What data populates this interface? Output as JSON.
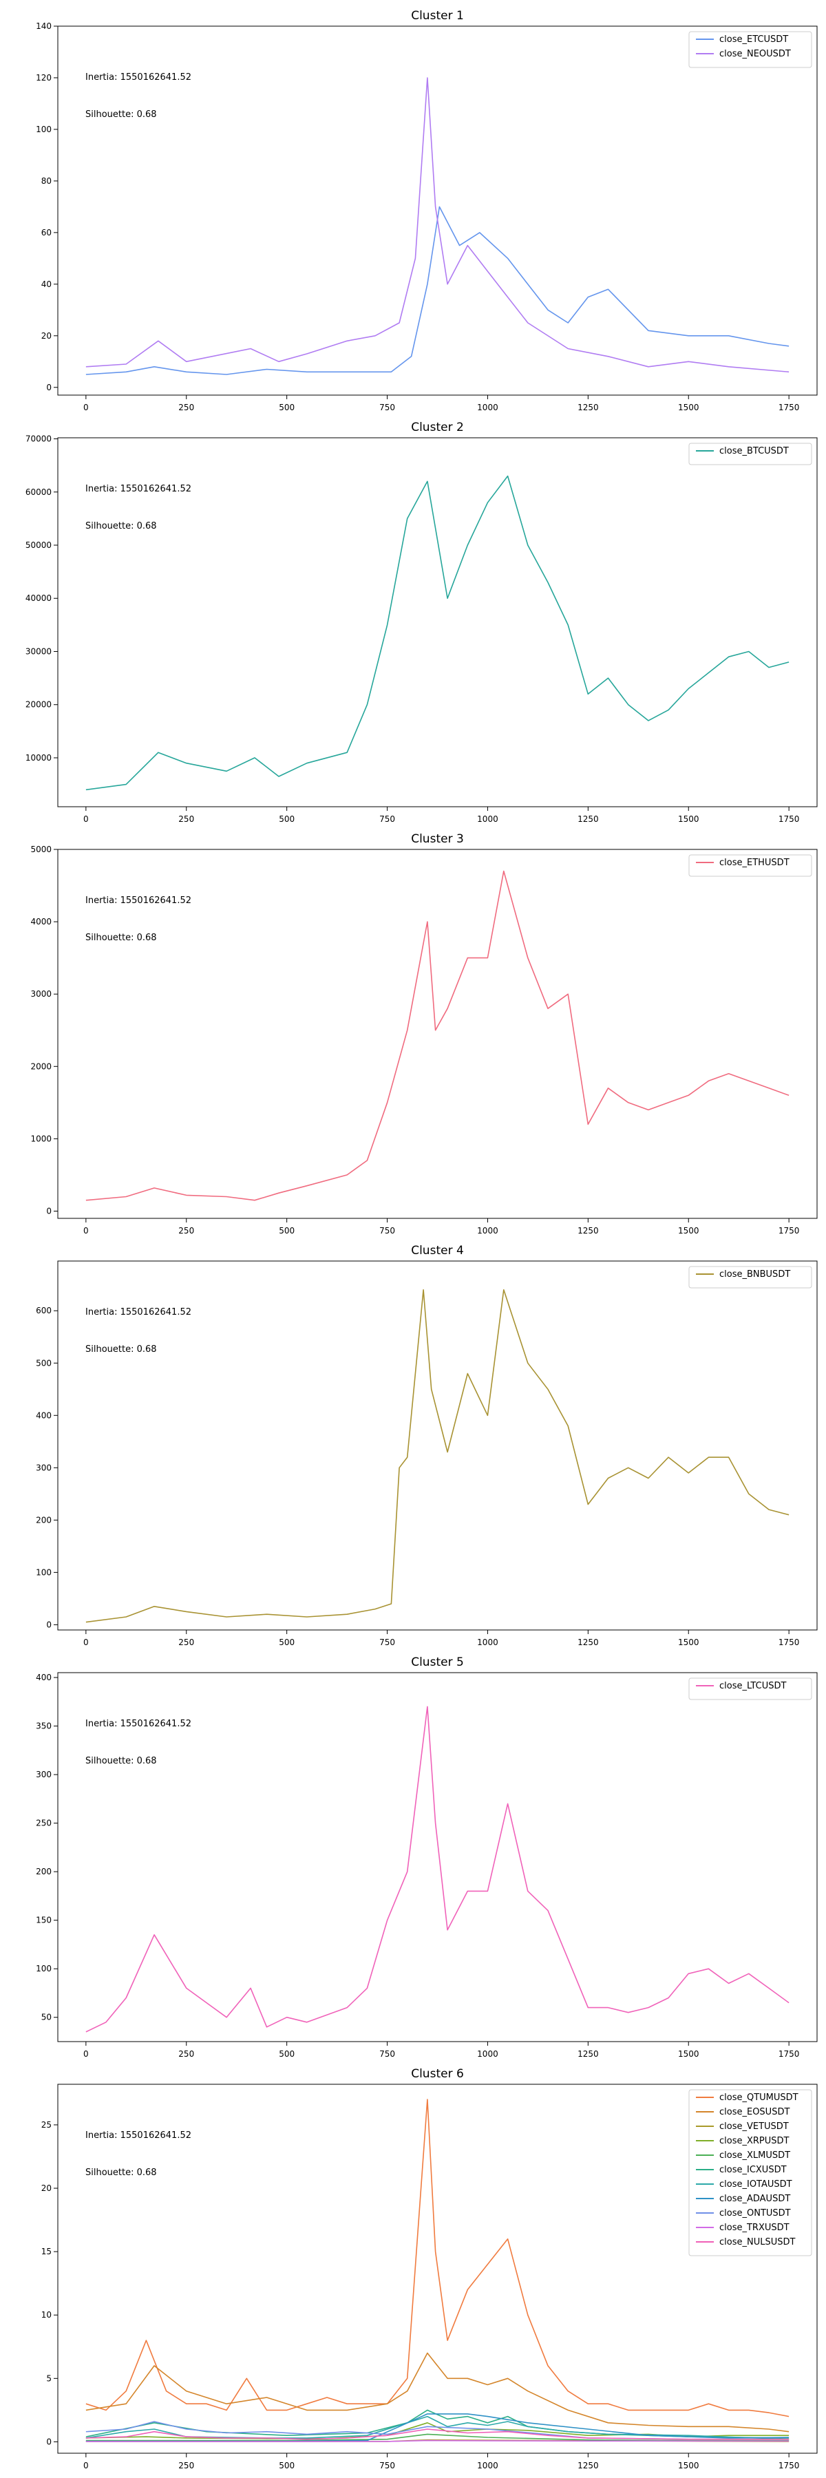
{
  "chart_data": [
    {
      "type": "line",
      "title": "Cluster 1",
      "annotations": [
        "Inertia: 1550162641.52",
        "Silhouette: 0.68"
      ],
      "xlim": [
        -70,
        1820
      ],
      "ylim": [
        -3,
        140
      ],
      "xticks": [
        0,
        250,
        500,
        750,
        1000,
        1250,
        1500,
        1750
      ],
      "yticks": [
        0,
        20,
        40,
        60,
        80,
        100,
        120,
        140
      ],
      "legend_position": "top-right",
      "series": [
        {
          "name": "close_ETCUSDT",
          "color": "#6495ED",
          "x": [
            0,
            100,
            170,
            250,
            350,
            450,
            550,
            650,
            760,
            810,
            850,
            880,
            930,
            980,
            1050,
            1150,
            1200,
            1250,
            1300,
            1400,
            1500,
            1600,
            1700,
            1750
          ],
          "y": [
            5,
            6,
            8,
            6,
            5,
            7,
            6,
            6,
            6,
            12,
            40,
            70,
            55,
            60,
            50,
            30,
            25,
            35,
            38,
            22,
            20,
            20,
            17,
            16
          ]
        },
        {
          "name": "close_NEOUSDT",
          "color": "#B07CF2",
          "x": [
            0,
            100,
            180,
            250,
            410,
            480,
            550,
            650,
            720,
            780,
            820,
            850,
            870,
            900,
            950,
            1000,
            1050,
            1100,
            1200,
            1300,
            1400,
            1500,
            1600,
            1750
          ],
          "y": [
            8,
            9,
            18,
            10,
            15,
            10,
            13,
            18,
            20,
            25,
            50,
            120,
            70,
            40,
            55,
            45,
            35,
            25,
            15,
            12,
            8,
            10,
            8,
            6
          ]
        }
      ]
    },
    {
      "type": "line",
      "title": "Cluster 2",
      "annotations": [
        "Inertia: 1550162641.52",
        "Silhouette: 0.68"
      ],
      "xlim": [
        -70,
        1820
      ],
      "ylim": [
        800,
        70200
      ],
      "xticks": [
        0,
        250,
        500,
        750,
        1000,
        1250,
        1500,
        1750
      ],
      "yticks": [
        10000,
        20000,
        30000,
        40000,
        50000,
        60000,
        70000
      ],
      "legend_position": "top-right",
      "series": [
        {
          "name": "close_BTCUSDT",
          "color": "#26A69A",
          "x": [
            0,
            100,
            180,
            250,
            350,
            420,
            480,
            550,
            650,
            700,
            750,
            800,
            850,
            900,
            950,
            1000,
            1050,
            1100,
            1150,
            1200,
            1250,
            1300,
            1350,
            1400,
            1450,
            1500,
            1550,
            1600,
            1650,
            1700,
            1750
          ],
          "y": [
            4000,
            5000,
            11000,
            9000,
            7500,
            10000,
            6500,
            9000,
            11000,
            20000,
            35000,
            55000,
            62000,
            40000,
            50000,
            58000,
            63000,
            50000,
            43000,
            35000,
            22000,
            25000,
            20000,
            17000,
            19000,
            23000,
            26000,
            29000,
            30000,
            27000,
            28000
          ]
        }
      ]
    },
    {
      "type": "line",
      "title": "Cluster 3",
      "annotations": [
        "Inertia: 1550162641.52",
        "Silhouette: 0.68"
      ],
      "xlim": [
        -70,
        1820
      ],
      "ylim": [
        -100,
        5000
      ],
      "xticks": [
        0,
        250,
        500,
        750,
        1000,
        1250,
        1500,
        1750
      ],
      "yticks": [
        0,
        1000,
        2000,
        3000,
        4000,
        5000
      ],
      "legend_position": "top-right",
      "series": [
        {
          "name": "close_ETHUSDT",
          "color": "#F06B7F",
          "x": [
            0,
            100,
            170,
            250,
            350,
            420,
            480,
            550,
            650,
            700,
            750,
            800,
            850,
            870,
            900,
            950,
            1000,
            1040,
            1100,
            1150,
            1200,
            1250,
            1300,
            1350,
            1400,
            1450,
            1500,
            1550,
            1600,
            1650,
            1700,
            1750
          ],
          "y": [
            150,
            200,
            320,
            220,
            200,
            150,
            250,
            350,
            500,
            700,
            1500,
            2500,
            4000,
            2500,
            2800,
            3500,
            3500,
            4700,
            3500,
            2800,
            3000,
            1200,
            1700,
            1500,
            1400,
            1500,
            1600,
            1800,
            1900,
            1800,
            1700,
            1600
          ]
        }
      ]
    },
    {
      "type": "line",
      "title": "Cluster 4",
      "annotations": [
        "Inertia: 1550162641.52",
        "Silhouette: 0.68"
      ],
      "xlim": [
        -70,
        1820
      ],
      "ylim": [
        -10,
        695
      ],
      "xticks": [
        0,
        250,
        500,
        750,
        1000,
        1250,
        1500,
        1750
      ],
      "yticks": [
        0,
        100,
        200,
        300,
        400,
        500,
        600
      ],
      "legend_position": "top-right",
      "series": [
        {
          "name": "close_BNBUSDT",
          "color": "#A89232",
          "x": [
            0,
            100,
            170,
            250,
            350,
            450,
            550,
            650,
            720,
            760,
            780,
            800,
            840,
            860,
            900,
            950,
            1000,
            1040,
            1100,
            1150,
            1200,
            1250,
            1300,
            1350,
            1400,
            1450,
            1500,
            1550,
            1600,
            1650,
            1700,
            1750
          ],
          "y": [
            5,
            15,
            35,
            25,
            15,
            20,
            15,
            20,
            30,
            40,
            300,
            320,
            640,
            450,
            330,
            480,
            400,
            640,
            500,
            450,
            380,
            230,
            280,
            300,
            280,
            320,
            290,
            320,
            320,
            250,
            220,
            210
          ]
        }
      ]
    },
    {
      "type": "line",
      "title": "Cluster 5",
      "annotations": [
        "Inertia: 1550162641.52",
        "Silhouette: 0.68"
      ],
      "xlim": [
        -70,
        1820
      ],
      "ylim": [
        25,
        405
      ],
      "xticks": [
        0,
        250,
        500,
        750,
        1000,
        1250,
        1500,
        1750
      ],
      "yticks": [
        50,
        100,
        150,
        200,
        250,
        300,
        350,
        400
      ],
      "legend_position": "top-right",
      "series": [
        {
          "name": "close_LTCUSDT",
          "color": "#F062B9",
          "x": [
            0,
            50,
            100,
            170,
            250,
            350,
            410,
            450,
            500,
            550,
            650,
            700,
            750,
            800,
            850,
            870,
            900,
            950,
            1000,
            1050,
            1100,
            1150,
            1200,
            1250,
            1300,
            1350,
            1400,
            1450,
            1500,
            1550,
            1600,
            1650,
            1700,
            1750
          ],
          "y": [
            35,
            45,
            70,
            135,
            80,
            50,
            80,
            40,
            50,
            45,
            60,
            80,
            150,
            200,
            370,
            250,
            140,
            180,
            180,
            270,
            180,
            160,
            110,
            60,
            60,
            55,
            60,
            70,
            95,
            100,
            85,
            95,
            80,
            65
          ]
        }
      ]
    },
    {
      "type": "line",
      "title": "Cluster 6",
      "annotations": [
        "Inertia: 1550162641.52",
        "Silhouette: 0.68"
      ],
      "xlim": [
        -70,
        1820
      ],
      "ylim": [
        -0.9,
        28.2
      ],
      "xticks": [
        0,
        250,
        500,
        750,
        1000,
        1250,
        1500,
        1750
      ],
      "yticks": [
        0,
        5,
        10,
        15,
        20,
        25
      ],
      "legend_position": "top-right",
      "series": [
        {
          "name": "close_QTUMUSDT",
          "color": "#F07B3F",
          "x": [
            0,
            50,
            100,
            150,
            200,
            250,
            300,
            350,
            400,
            450,
            500,
            550,
            600,
            650,
            700,
            750,
            800,
            850,
            870,
            900,
            950,
            1000,
            1050,
            1100,
            1150,
            1200,
            1250,
            1300,
            1350,
            1400,
            1450,
            1500,
            1550,
            1600,
            1650,
            1700,
            1750
          ],
          "y": [
            3,
            2.5,
            4,
            8,
            4,
            3,
            3,
            2.5,
            5,
            2.5,
            2.5,
            3,
            3.5,
            3,
            3,
            3,
            5,
            27,
            15,
            8,
            12,
            14,
            16,
            10,
            6,
            4,
            3,
            3,
            2.5,
            2.5,
            2.5,
            2.5,
            3,
            2.5,
            2.5,
            2.3,
            2
          ]
        },
        {
          "name": "close_EOSUSDT",
          "color": "#D4852A",
          "x": [
            0,
            100,
            170,
            250,
            350,
            450,
            550,
            650,
            750,
            800,
            850,
            900,
            950,
            1000,
            1050,
            1100,
            1200,
            1300,
            1400,
            1500,
            1600,
            1700,
            1750
          ],
          "y": [
            2.5,
            3,
            6,
            4,
            3,
            3.5,
            2.5,
            2.5,
            3,
            4,
            7,
            5,
            5,
            4.5,
            5,
            4,
            2.5,
            1.5,
            1.3,
            1.2,
            1.2,
            1,
            0.8
          ]
        },
        {
          "name": "close_VETUSDT",
          "color": "#A99A2A",
          "x": [
            0,
            250,
            500,
            750,
            850,
            1000,
            1250,
            1500,
            1750
          ],
          "y": [
            0.02,
            0.02,
            0.02,
            0.03,
            0.15,
            0.12,
            0.08,
            0.05,
            0.03
          ]
        },
        {
          "name": "close_XRPUSDT",
          "color": "#7FAE28",
          "x": [
            0,
            150,
            250,
            450,
            600,
            750,
            850,
            900,
            1000,
            1100,
            1250,
            1400,
            1500,
            1600,
            1750
          ],
          "y": [
            0.3,
            0.4,
            0.3,
            0.25,
            0.25,
            0.5,
            1.5,
            0.8,
            1,
            0.9,
            0.5,
            0.6,
            0.4,
            0.5,
            0.5
          ]
        },
        {
          "name": "close_XLMUSDT",
          "color": "#4BAF55",
          "x": [
            0,
            250,
            500,
            750,
            850,
            1000,
            1250,
            1500,
            1750
          ],
          "y": [
            0.1,
            0.1,
            0.1,
            0.2,
            0.6,
            0.35,
            0.15,
            0.1,
            0.1
          ]
        },
        {
          "name": "close_ICXUSDT",
          "color": "#2BAE87",
          "x": [
            0,
            170,
            300,
            500,
            700,
            800,
            850,
            900,
            950,
            1000,
            1050,
            1100,
            1200,
            1300,
            1500,
            1750
          ],
          "y": [
            0.4,
            1.5,
            0.8,
            0.5,
            0.7,
            1.5,
            2.5,
            1.8,
            2,
            1.5,
            2,
            1.2,
            0.8,
            0.6,
            0.4,
            0.3
          ]
        },
        {
          "name": "close_IOTAUSDT",
          "color": "#2CA9A9",
          "x": [
            0,
            100,
            170,
            250,
            450,
            550,
            700,
            800,
            850,
            900,
            950,
            1000,
            1050,
            1100,
            1200,
            1300,
            1500,
            1750
          ],
          "y": [
            0.3,
            0.8,
            1,
            0.4,
            0.3,
            0.3,
            0.5,
            1.5,
            2,
            1.2,
            1.5,
            1.3,
            1.6,
            1.2,
            0.8,
            0.6,
            0.5,
            0.2
          ]
        },
        {
          "name": "close_ADAUSDT",
          "color": "#2E91C6",
          "x": [
            0,
            250,
            500,
            700,
            780,
            850,
            950,
            1000,
            1100,
            1250,
            1400,
            1500,
            1600,
            1750
          ],
          "y": [
            0.05,
            0.05,
            0.05,
            0.1,
            1.2,
            2.2,
            2.2,
            2,
            1.5,
            1,
            0.5,
            0.4,
            0.3,
            0.35
          ]
        },
        {
          "name": "close_ONTUSDT",
          "color": "#6F8FE8",
          "x": [
            0,
            100,
            170,
            250,
            350,
            450,
            550,
            650,
            750,
            850,
            1000,
            1250,
            1500,
            1750
          ],
          "y": [
            0.8,
            1,
            1.6,
            1,
            0.7,
            0.8,
            0.6,
            0.8,
            0.6,
            1.2,
            1,
            0.3,
            0.2,
            0.2
          ]
        },
        {
          "name": "close_TRXUSDT",
          "color": "#D26BE6",
          "x": [
            0,
            250,
            500,
            750,
            850,
            1000,
            1250,
            1500,
            1750
          ],
          "y": [
            0.02,
            0.02,
            0.02,
            0.03,
            0.1,
            0.08,
            0.06,
            0.06,
            0.06
          ]
        },
        {
          "name": "close_NULSUSDT",
          "color": "#F05FB6",
          "x": [
            0,
            100,
            170,
            250,
            350,
            450,
            550,
            650,
            750,
            850,
            950,
            1050,
            1150,
            1250,
            1500,
            1750
          ],
          "y": [
            0.3,
            0.4,
            0.8,
            0.4,
            0.3,
            0.3,
            0.2,
            0.3,
            0.5,
            1,
            0.7,
            0.8,
            0.5,
            0.3,
            0.2,
            0.2
          ]
        }
      ]
    }
  ]
}
